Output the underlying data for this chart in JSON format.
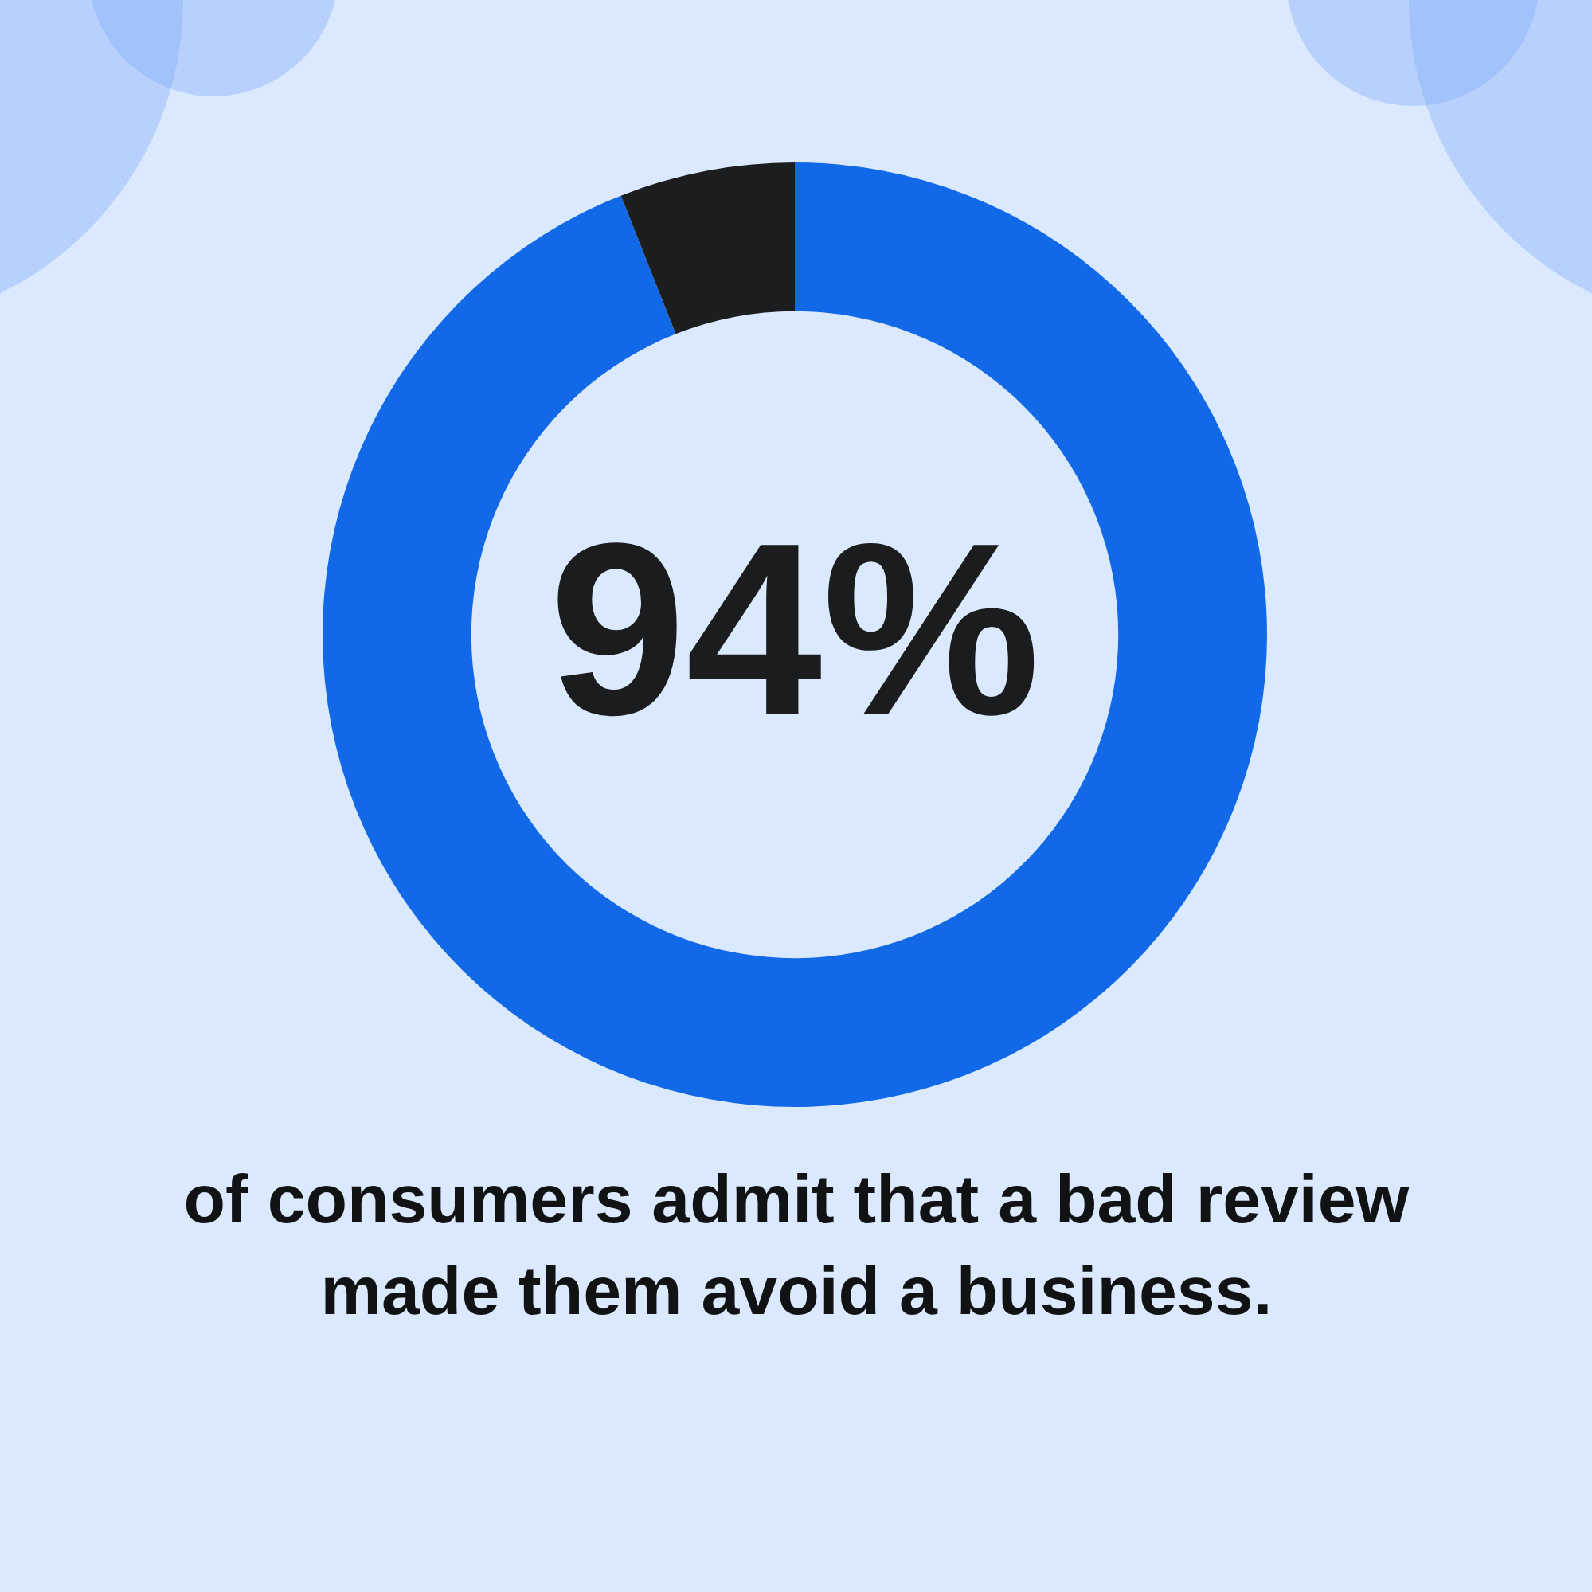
{
  "chart_data": {
    "type": "donut",
    "categories": [
      null,
      null
    ],
    "values": [
      94,
      6
    ],
    "colors": [
      "#1169e8",
      "#1c1d1f"
    ],
    "value_labels": [
      "94%",
      null
    ],
    "annotations": [
      "of consumers admit that a bad review made them avoid a business."
    ]
  }
}
